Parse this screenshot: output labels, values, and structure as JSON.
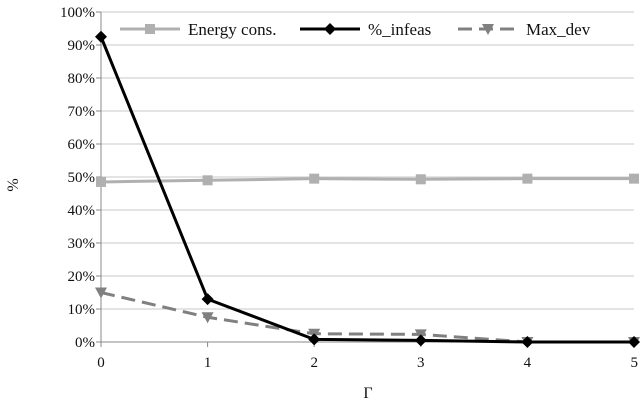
{
  "chart_data": {
    "type": "line",
    "title": "",
    "xlabel": "Γ",
    "ylabel": "%",
    "x": [
      0,
      1,
      2,
      3,
      4,
      5
    ],
    "x_tick_labels": [
      "0",
      "1",
      "2",
      "3",
      "4",
      "5"
    ],
    "y_tick_labels": [
      "0%",
      "10%",
      "20%",
      "30%",
      "40%",
      "50%",
      "60%",
      "70%",
      "80%",
      "90%",
      "100%"
    ],
    "ylim": [
      0,
      100
    ],
    "grid": "horizontal",
    "legend_position": "top",
    "series": [
      {
        "name": "Energy cons.",
        "values": [
          48.5,
          49,
          49.5,
          49.3,
          49.5,
          49.5
        ],
        "color": "#b0b0b0",
        "line_style": "solid",
        "marker": "square"
      },
      {
        "name": "%_infeas",
        "values": [
          92.5,
          13,
          0.8,
          0.5,
          0,
          0
        ],
        "color": "#000000",
        "line_style": "solid",
        "marker": "diamond"
      },
      {
        "name": "Max_dev",
        "values": [
          15,
          7.5,
          2.5,
          2.3,
          0,
          0
        ],
        "color": "#808080",
        "line_style": "dashed",
        "marker": "triangle-down"
      }
    ]
  }
}
